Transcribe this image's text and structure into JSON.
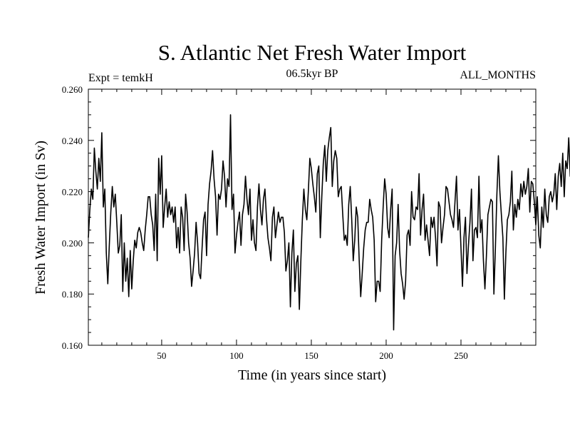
{
  "chart_data": {
    "type": "line",
    "title": "S. Atlantic Net Fresh Water Import",
    "subtitle_left": "Expt = temkH",
    "subtitle_center": "06.5kyr BP",
    "subtitle_right": "ALL_MONTHS",
    "xlabel": "Time (in years since start)",
    "ylabel": "Fresh Water Import (in Sv)",
    "xlim": [
      1,
      300
    ],
    "ylim": [
      0.16,
      0.26
    ],
    "xticks": [
      50,
      100,
      150,
      200,
      250
    ],
    "xtick_labels": [
      "50",
      "100",
      "150",
      "200",
      "250"
    ],
    "yticks": [
      0.16,
      0.18,
      0.2,
      0.22,
      0.24,
      0.26
    ],
    "ytick_labels": [
      "0.160",
      "0.180",
      "0.200",
      "0.220",
      "0.240",
      "0.260"
    ],
    "series": [
      {
        "name": "Fresh Water Import",
        "color": "#000000",
        "x_start": 1,
        "x_step": 1,
        "values": [
          0.202,
          0.213,
          0.221,
          0.217,
          0.237,
          0.228,
          0.221,
          0.233,
          0.224,
          0.243,
          0.214,
          0.221,
          0.196,
          0.184,
          0.199,
          0.212,
          0.222,
          0.214,
          0.219,
          0.208,
          0.196,
          0.199,
          0.211,
          0.181,
          0.2,
          0.185,
          0.194,
          0.179,
          0.197,
          0.182,
          0.193,
          0.201,
          0.198,
          0.204,
          0.206,
          0.204,
          0.2,
          0.197,
          0.205,
          0.211,
          0.218,
          0.218,
          0.211,
          0.207,
          0.197,
          0.219,
          0.193,
          0.233,
          0.219,
          0.234,
          0.206,
          0.214,
          0.221,
          0.21,
          0.216,
          0.211,
          0.214,
          0.208,
          0.214,
          0.198,
          0.206,
          0.196,
          0.214,
          0.21,
          0.197,
          0.219,
          0.212,
          0.2,
          0.194,
          0.183,
          0.189,
          0.196,
          0.208,
          0.2,
          0.188,
          0.186,
          0.198,
          0.209,
          0.212,
          0.195,
          0.215,
          0.223,
          0.228,
          0.236,
          0.225,
          0.218,
          0.203,
          0.219,
          0.217,
          0.221,
          0.232,
          0.226,
          0.214,
          0.225,
          0.222,
          0.25,
          0.213,
          0.219,
          0.196,
          0.203,
          0.208,
          0.212,
          0.199,
          0.211,
          0.215,
          0.226,
          0.217,
          0.211,
          0.221,
          0.201,
          0.209,
          0.2,
          0.197,
          0.214,
          0.223,
          0.213,
          0.207,
          0.217,
          0.221,
          0.21,
          0.202,
          0.198,
          0.193,
          0.21,
          0.214,
          0.202,
          0.207,
          0.212,
          0.208,
          0.21,
          0.21,
          0.204,
          0.189,
          0.193,
          0.2,
          0.175,
          0.196,
          0.205,
          0.181,
          0.192,
          0.195,
          0.174,
          0.193,
          0.209,
          0.221,
          0.213,
          0.209,
          0.22,
          0.233,
          0.229,
          0.223,
          0.218,
          0.212,
          0.227,
          0.23,
          0.202,
          0.218,
          0.231,
          0.238,
          0.224,
          0.236,
          0.241,
          0.245,
          0.222,
          0.232,
          0.236,
          0.233,
          0.218,
          0.221,
          0.222,
          0.211,
          0.201,
          0.203,
          0.199,
          0.215,
          0.222,
          0.209,
          0.193,
          0.201,
          0.214,
          0.21,
          0.193,
          0.179,
          0.188,
          0.198,
          0.205,
          0.208,
          0.208,
          0.217,
          0.213,
          0.21,
          0.201,
          0.177,
          0.185,
          0.185,
          0.181,
          0.201,
          0.214,
          0.225,
          0.219,
          0.206,
          0.202,
          0.213,
          0.221,
          0.166,
          0.195,
          0.2,
          0.215,
          0.197,
          0.188,
          0.184,
          0.178,
          0.185,
          0.203,
          0.205,
          0.199,
          0.22,
          0.21,
          0.209,
          0.214,
          0.213,
          0.227,
          0.203,
          0.213,
          0.219,
          0.201,
          0.207,
          0.201,
          0.195,
          0.21,
          0.206,
          0.21,
          0.202,
          0.191,
          0.216,
          0.214,
          0.2,
          0.206,
          0.211,
          0.222,
          0.221,
          0.216,
          0.211,
          0.209,
          0.206,
          0.216,
          0.226,
          0.205,
          0.213,
          0.198,
          0.183,
          0.202,
          0.21,
          0.188,
          0.199,
          0.208,
          0.221,
          0.193,
          0.205,
          0.206,
          0.202,
          0.226,
          0.204,
          0.209,
          0.193,
          0.182,
          0.195,
          0.211,
          0.214,
          0.217,
          0.216,
          0.18,
          0.198,
          0.219,
          0.234,
          0.22,
          0.211,
          0.202,
          0.178,
          0.196,
          0.209,
          0.211,
          0.216,
          0.228,
          0.205,
          0.215,
          0.21,
          0.217,
          0.213,
          0.223,
          0.218,
          0.224,
          0.219,
          0.222,
          0.229,
          0.212,
          0.224,
          0.223,
          0.216,
          0.207,
          0.218,
          0.203,
          0.198,
          0.214,
          0.206,
          0.221,
          0.211,
          0.208,
          0.218,
          0.22,
          0.216,
          0.219,
          0.227,
          0.213,
          0.226,
          0.231,
          0.222,
          0.235,
          0.218,
          0.232,
          0.229,
          0.241,
          0.226,
          0.228,
          0.233,
          0.245,
          0.249,
          0.243,
          0.24,
          0.233,
          0.228,
          0.242,
          0.225,
          0.213,
          0.234,
          0.218,
          0.222,
          0.227,
          0.21,
          0.219,
          0.199,
          0.216,
          0.225,
          0.218,
          0.205,
          0.186,
          0.212,
          0.224,
          0.213,
          0.224,
          0.221,
          0.219,
          0.217,
          0.22
        ]
      }
    ]
  }
}
